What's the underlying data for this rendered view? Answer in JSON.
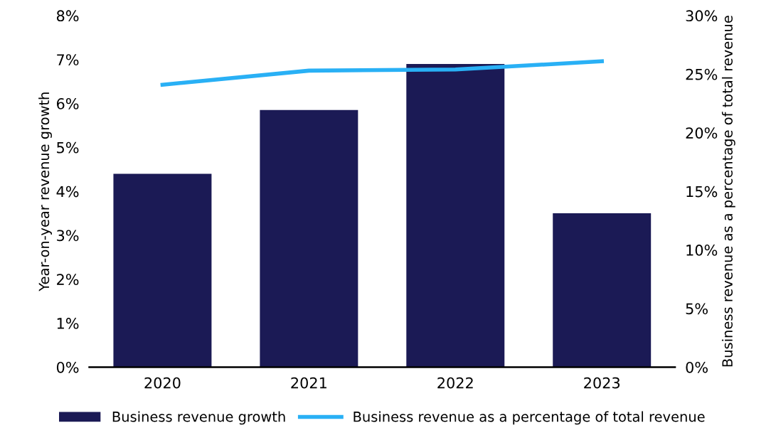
{
  "chart_data": {
    "type": "bar",
    "categories": [
      "2020",
      "2021",
      "2022",
      "2023"
    ],
    "ylabel": "Year-on-year revenue growth",
    "y2label": "Business revenue as a percentage of total revenue",
    "series": [
      {
        "name": "Business revenue growth",
        "color": "#1b1a55",
        "values": [
          4.4,
          5.85,
          6.9,
          3.5
        ]
      },
      {
        "name": "Business revenue as a percentage of total revenue",
        "type": "line",
        "axis": "y2",
        "color": "#29b0f5",
        "values": [
          24.1,
          25.3,
          25.4,
          26.1
        ]
      }
    ],
    "ylim": [
      0,
      8
    ],
    "yticks": [
      {
        "value": 0,
        "label": "0%"
      },
      {
        "value": 1,
        "label": "1%"
      },
      {
        "value": 2,
        "label": "2%"
      },
      {
        "value": 3,
        "label": "3%"
      },
      {
        "value": 4,
        "label": "4%"
      },
      {
        "value": 5,
        "label": "5%"
      },
      {
        "value": 6,
        "label": "6%"
      },
      {
        "value": 7,
        "label": "7%"
      },
      {
        "value": 8,
        "label": "8%"
      }
    ],
    "y2lim": [
      0,
      30
    ],
    "y2ticks": [
      {
        "value": 0,
        "label": "0%"
      },
      {
        "value": 5,
        "label": "5%"
      },
      {
        "value": 10,
        "label": "10%"
      },
      {
        "value": 15,
        "label": "15%"
      },
      {
        "value": 20,
        "label": "20%"
      },
      {
        "value": 25,
        "label": "25%"
      },
      {
        "value": 30,
        "label": "30%"
      }
    ],
    "legend": "bottom",
    "grid": false,
    "marker": "none",
    "line_style": "solid"
  }
}
